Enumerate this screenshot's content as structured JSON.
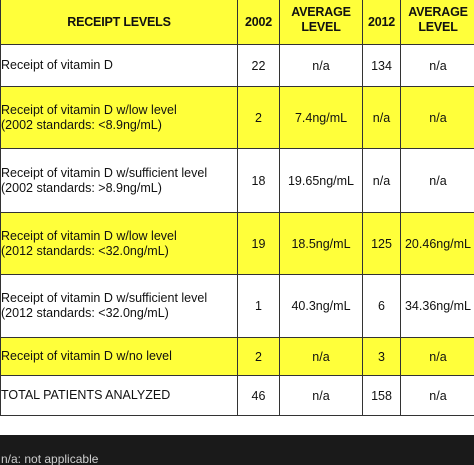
{
  "table": {
    "headers": {
      "receipt_levels": "RECEIPT LEVELS",
      "year_2002": "2002",
      "avg_level_2002": [
        "AVERAGE",
        "LEVEL"
      ],
      "year_2012": "2012",
      "avg_level_2012": [
        "AVERAGE",
        "LEVEL"
      ]
    },
    "rows": [
      {
        "label": [
          "Receipt of vitamin D"
        ],
        "c2002": "22",
        "avg2002": "n/a",
        "c2012": "134",
        "avg2012": "n/a",
        "highlight": false
      },
      {
        "label": [
          "Receipt of vitamin D w/low level",
          "(2002 standards: <8.9ng/mL)"
        ],
        "c2002": "2",
        "avg2002": "7.4ng/mL",
        "c2012": "n/a",
        "avg2012": "n/a",
        "highlight": true
      },
      {
        "label": [
          "Receipt of vitamin D w/sufficient level",
          "(2002 standards: >8.9ng/mL)"
        ],
        "c2002": "18",
        "avg2002": "19.65ng/mL",
        "c2012": "n/a",
        "avg2012": "n/a",
        "highlight": false
      },
      {
        "label": [
          "Receipt of vitamin D w/low level",
          "(2012 standards: <32.0ng/mL)"
        ],
        "c2002": "19",
        "avg2002": "18.5ng/mL",
        "c2012": "125",
        "avg2012": "20.46ng/mL",
        "highlight": true
      },
      {
        "label": [
          "Receipt of vitamin D w/sufficient level",
          "(2012 standards: <32.0ng/mL)"
        ],
        "c2002": "1",
        "avg2002": "40.3ng/mL",
        "c2012": "6",
        "avg2012": "34.36ng/mL",
        "highlight": false
      },
      {
        "label": [
          "Receipt of vitamin D w/no level"
        ],
        "c2002": "2",
        "avg2002": "n/a",
        "c2012": "3",
        "avg2012": "n/a",
        "highlight": true
      },
      {
        "label": [
          "TOTAL PATIENTS ANALYZED"
        ],
        "c2002": "46",
        "avg2002": "n/a",
        "c2012": "158",
        "avg2012": "n/a",
        "highlight": false
      }
    ]
  },
  "footnote": "n/a: not applicable",
  "colors": {
    "highlight": "#ffff3a",
    "border": "#333333",
    "footer_bg": "#1a1a1a"
  }
}
